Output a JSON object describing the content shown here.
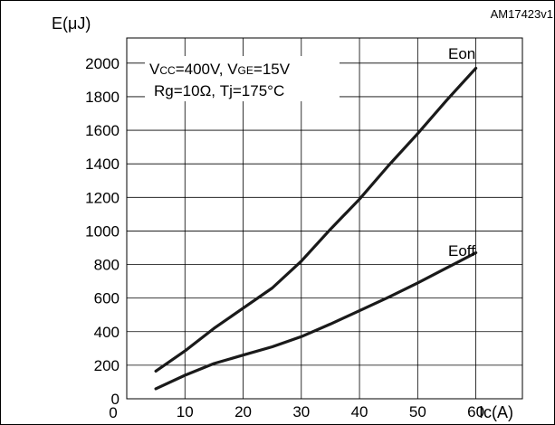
{
  "chart_data": {
    "type": "line",
    "figure_id": "AM17423v1",
    "ylabel": "E(μJ)",
    "xlabel": "Ic(A)",
    "xlim": [
      0,
      68
    ],
    "ylim": [
      0,
      2150
    ],
    "x_ticks": [
      10,
      20,
      30,
      40,
      50,
      60
    ],
    "x_zero_label": "0",
    "y_ticks": [
      0,
      200,
      400,
      600,
      800,
      1000,
      1200,
      1400,
      1600,
      1800,
      2000
    ],
    "conditions_line1": {
      "p1": "V",
      "p1_sub": "CC",
      "p2": "=400V,  V",
      "p2_sub": "GE",
      "p3": "=15V"
    },
    "conditions_line2": "Rg=10Ω,  Tj=175°C",
    "grid": true,
    "series": [
      {
        "name": "Eon",
        "x": [
          5,
          10,
          15,
          20,
          25,
          30,
          35,
          40,
          45,
          50,
          55,
          60
        ],
        "y": [
          165,
          285,
          420,
          540,
          660,
          820,
          1010,
          1190,
          1390,
          1580,
          1780,
          1970
        ]
      },
      {
        "name": "Eoff",
        "x": [
          5,
          10,
          15,
          20,
          25,
          30,
          35,
          40,
          45,
          50,
          55,
          60
        ],
        "y": [
          60,
          140,
          210,
          260,
          310,
          370,
          445,
          525,
          605,
          690,
          780,
          870
        ]
      }
    ]
  }
}
